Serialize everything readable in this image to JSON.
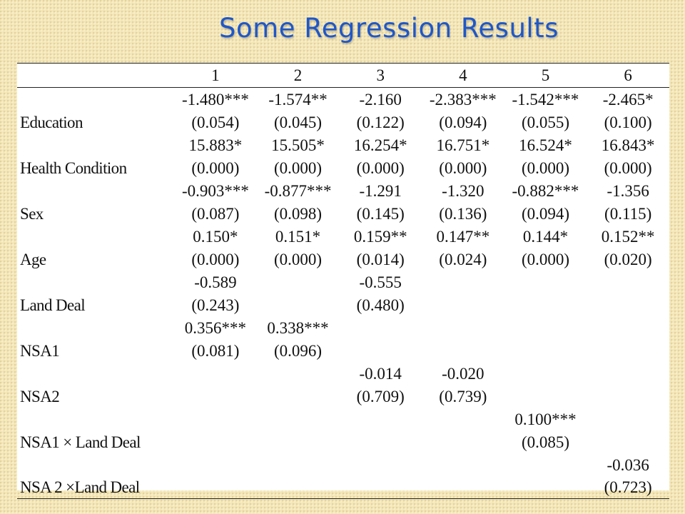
{
  "title": "Some Regression Results",
  "table": {
    "columns": [
      "",
      "1",
      "2",
      "3",
      "4",
      "5",
      "6"
    ],
    "rows": [
      {
        "variable": "Education",
        "coef": [
          "-1.480***",
          "-1.574**",
          "-2.160",
          "-2.383***",
          "-1.542***",
          "-2.465*"
        ],
        "se": [
          "(0.054)",
          "(0.045)",
          "(0.122)",
          "(0.094)",
          "(0.055)",
          "(0.100)"
        ]
      },
      {
        "variable": "Health Condition",
        "coef": [
          "15.883*",
          "15.505*",
          "16.254*",
          "16.751*",
          "16.524*",
          "16.843*"
        ],
        "se": [
          "(0.000)",
          "(0.000)",
          "(0.000)",
          "(0.000)",
          "(0.000)",
          "(0.000)"
        ]
      },
      {
        "variable": "Sex",
        "coef": [
          "-0.903***",
          "-0.877***",
          "-1.291",
          "-1.320",
          "-0.882***",
          "-1.356"
        ],
        "se": [
          "(0.087)",
          "(0.098)",
          "(0.145)",
          "(0.136)",
          "(0.094)",
          "(0.115)"
        ]
      },
      {
        "variable": "Age",
        "coef": [
          "0.150*",
          "0.151*",
          "0.159**",
          "0.147**",
          "0.144*",
          "0.152**"
        ],
        "se": [
          "(0.000)",
          "(0.000)",
          "(0.014)",
          "(0.024)",
          "(0.000)",
          "(0.020)"
        ]
      },
      {
        "variable": "Land Deal",
        "coef": [
          "-0.589",
          "",
          "-0.555",
          "",
          "",
          ""
        ],
        "se": [
          "(0.243)",
          "",
          "(0.480)",
          "",
          "",
          ""
        ]
      },
      {
        "variable": "NSA1",
        "coef": [
          "0.356***",
          "0.338***",
          "",
          "",
          "",
          ""
        ],
        "se": [
          "(0.081)",
          "(0.096)",
          "",
          "",
          "",
          ""
        ]
      },
      {
        "variable": "NSA2",
        "coef": [
          "",
          "",
          "-0.014",
          "-0.020",
          "",
          ""
        ],
        "se": [
          "",
          "",
          "(0.709)",
          "(0.739)",
          "",
          ""
        ]
      },
      {
        "variable": "NSA1 × Land Deal",
        "coef": [
          "",
          "",
          "",
          "",
          "0.100***",
          ""
        ],
        "se": [
          "",
          "",
          "",
          "",
          "(0.085)",
          ""
        ]
      },
      {
        "variable": "NSA 2 ×Land Deal",
        "coef": [
          "",
          "",
          "",
          "",
          "",
          "-0.036"
        ],
        "se": [
          "",
          "",
          "",
          "",
          "",
          "(0.723)"
        ]
      }
    ]
  }
}
